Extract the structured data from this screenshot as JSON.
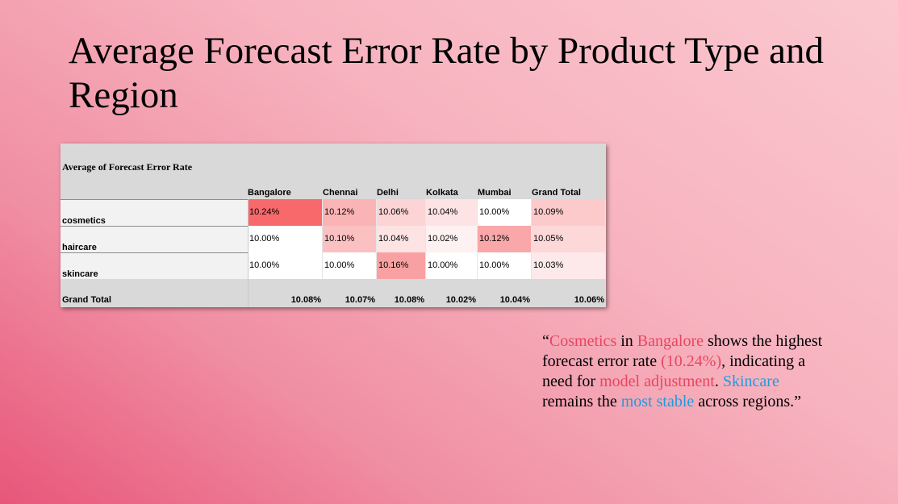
{
  "title": "Average Forecast Error Rate by Product Type and Region",
  "pivot": {
    "caption": "Average of Forecast  Error Rate",
    "columns": [
      "Bangalore",
      "Chennai",
      "Delhi",
      "Kolkata",
      "Mumbai",
      "Grand Total"
    ],
    "rows": [
      {
        "label": "cosmetics",
        "values": [
          "10.24%",
          "10.12%",
          "10.06%",
          "10.04%",
          "10.00%",
          "10.09%"
        ]
      },
      {
        "label": "haircare",
        "values": [
          "10.00%",
          "10.10%",
          "10.04%",
          "10.02%",
          "10.12%",
          "10.05%"
        ]
      },
      {
        "label": "skincare",
        "values": [
          "10.00%",
          "10.00%",
          "10.16%",
          "10.00%",
          "10.00%",
          "10.03%"
        ]
      }
    ],
    "grand_total": {
      "label": "Grand Total",
      "values": [
        "10.08%",
        "10.07%",
        "10.08%",
        "10.02%",
        "10.04%",
        "10.06%"
      ]
    },
    "cell_colors": [
      [
        "#f8696b",
        "#fbb4b5",
        "#fcd4d5",
        "#fde3e4",
        "#ffffff",
        "#fccacb"
      ],
      [
        "#ffffff",
        "#fbc0c1",
        "#fde3e4",
        "#fef1f1",
        "#f9a7a8",
        "#fdd8d9"
      ],
      [
        "#ffffff",
        "#ffffff",
        "#f9a1a2",
        "#ffffff",
        "#ffffff",
        "#fde9ea"
      ]
    ]
  },
  "quote": {
    "open": "“",
    "p1": "Cosmetics",
    "p2": " in ",
    "p3": "Bangalore",
    "p4": " shows the highest forecast error rate ",
    "p5": "(10.24%)",
    "p6": ", indicating a need for ",
    "p7": "model adjustment",
    "p8": ". ",
    "p9": "Skincare",
    "p10": " remains the ",
    "p11": "most stable",
    "p12": " across regions.”",
    "colors": {
      "red": "#e8465f",
      "blue": "#1e9be0"
    }
  }
}
